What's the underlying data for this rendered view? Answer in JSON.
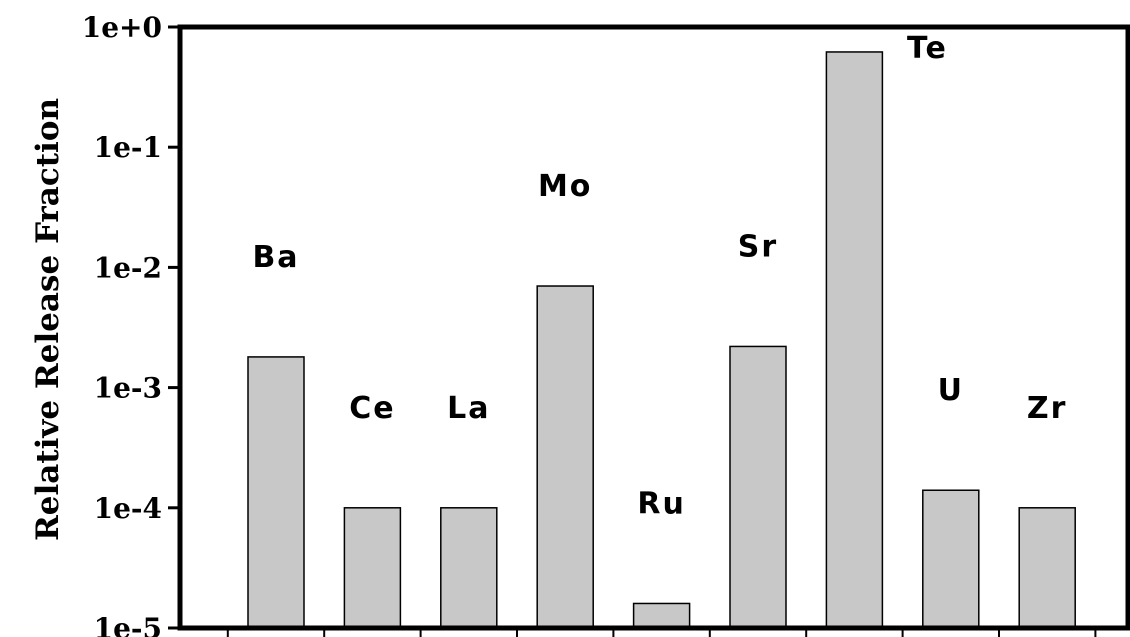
{
  "chart_data": {
    "type": "bar",
    "yscale": "log",
    "ylabel": "Relative Release Fraction",
    "xlabel": "",
    "ylim": [
      1e-05,
      1
    ],
    "yticks": [
      {
        "value": 1,
        "label": "1e+0"
      },
      {
        "value": 0.1,
        "label": "1e-1"
      },
      {
        "value": 0.01,
        "label": "1e-2"
      },
      {
        "value": 0.001,
        "label": "1e-3"
      },
      {
        "value": 0.0001,
        "label": "1e-4"
      },
      {
        "value": 1e-05,
        "label": "1e-5"
      }
    ],
    "categories": [
      "Ba",
      "Ce",
      "La",
      "Mo",
      "Ru",
      "Sr",
      "Te",
      "U",
      "Zr"
    ],
    "values": [
      0.0018,
      0.0001,
      0.0001,
      0.007,
      1.6e-05,
      0.0022,
      0.62,
      0.00014,
      0.0001
    ],
    "bar_color": "#c8c8c8",
    "grid": false,
    "legend": "none"
  }
}
